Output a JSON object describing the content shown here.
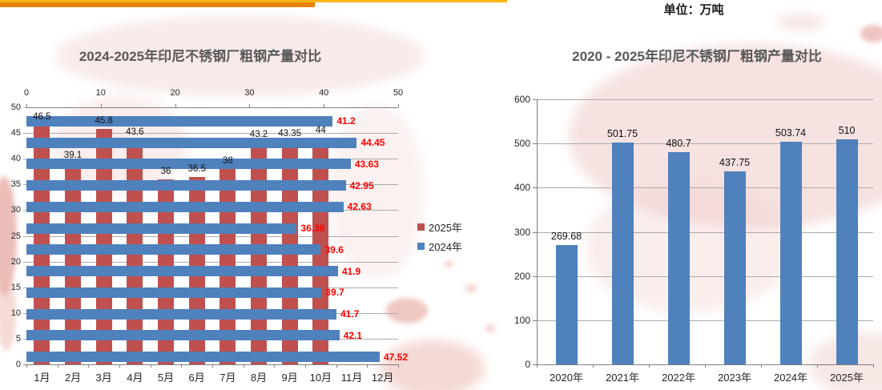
{
  "page": {
    "unit_label": "单位：万吨"
  },
  "theme": {
    "accent_orange": "#E8830C",
    "accent_yellow": "#FDB515",
    "bar_blue": "#4F81BD",
    "bar_red": "#C0504D",
    "value_label_red": "#FF0000",
    "value_label_black": "#111111",
    "title_gray": "#595959",
    "map_pink": "#F3D8D5"
  },
  "legend": {
    "items": [
      {
        "label": "2025年",
        "color": "#C0504D"
      },
      {
        "label": "2024年",
        "color": "#4F81BD"
      }
    ]
  },
  "chart_data": [
    {
      "type": "bar",
      "subtype": "combo-vertical-columns-plus-horizontal-bars",
      "title": "2024-2025年印尼不锈钢厂粗钢产量对比",
      "categories": [
        "1月",
        "2月",
        "3月",
        "4月",
        "5月",
        "6月",
        "7月",
        "8月",
        "9月",
        "10月",
        "11月",
        "12月"
      ],
      "series": [
        {
          "name": "2025年",
          "render": "vertical-columns",
          "color": "#C0504D",
          "label_color": "#111111",
          "values": [
            46.5,
            39.1,
            45.8,
            43.6,
            36,
            36.5,
            38,
            43.2,
            43.35,
            44,
            null,
            null
          ]
        },
        {
          "name": "2024年",
          "render": "horizontal-bars",
          "color": "#4F81BD",
          "label_color": "#FF0000",
          "values": [
            47.52,
            42.1,
            41.7,
            39.7,
            41.9,
            39.6,
            36.36,
            42.63,
            42.95,
            43.63,
            44.45,
            41.2
          ]
        }
      ],
      "value_axis_left": {
        "min": 0,
        "max": 50,
        "step": 5
      },
      "value_axis_top": {
        "min": 0,
        "max": 50,
        "step": 10
      },
      "grid": true,
      "legend_position": "right"
    },
    {
      "type": "bar",
      "title": "2020 - 2025年印尼不锈钢厂粗钢产量对比",
      "categories": [
        "2020年",
        "2021年",
        "2022年",
        "2023年",
        "2024年",
        "2025年"
      ],
      "values": [
        269.68,
        501.75,
        480.7,
        437.75,
        503.74,
        510
      ],
      "bar_color": "#4F81BD",
      "xlabel": "",
      "ylabel": "",
      "ylim": [
        0,
        600
      ],
      "y_step": 100,
      "grid": true,
      "legend_position": "none"
    }
  ]
}
